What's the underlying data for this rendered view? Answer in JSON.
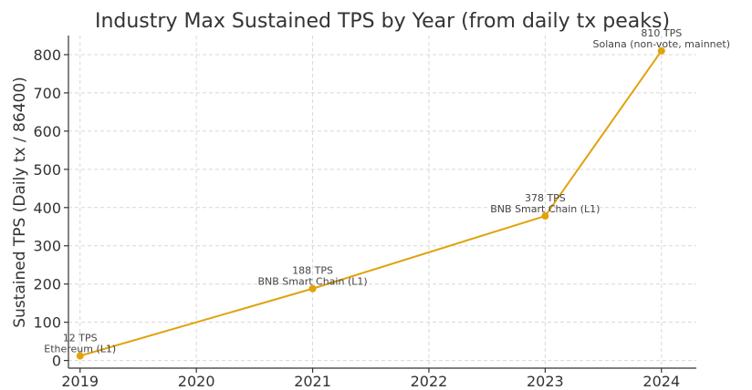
{
  "chart_data": {
    "type": "line",
    "title": "Industry Max Sustained TPS by Year (from daily tx peaks)",
    "xlabel": "",
    "ylabel": "Sustained TPS (Daily tx / 86400)",
    "xlim": [
      2018.9,
      2024.3
    ],
    "ylim": [
      -20,
      850
    ],
    "x_ticks": [
      2019,
      2020,
      2021,
      2022,
      2023,
      2024
    ],
    "y_ticks": [
      0,
      100,
      200,
      300,
      400,
      500,
      600,
      700,
      800
    ],
    "grid": true,
    "line_color": "#E1A20B",
    "series": [
      {
        "name": "Max sustained TPS",
        "points": [
          {
            "x": 2019,
            "y": 12,
            "label_tps": "12 TPS",
            "label_chain": "Ethereum (L1)"
          },
          {
            "x": 2021,
            "y": 188,
            "label_tps": "188 TPS",
            "label_chain": "BNB Smart Chain (L1)"
          },
          {
            "x": 2023,
            "y": 378,
            "label_tps": "378 TPS",
            "label_chain": "BNB Smart Chain (L1)"
          },
          {
            "x": 2024,
            "y": 810,
            "label_tps": "810 TPS",
            "label_chain": "Solana (non-vote, mainnet)"
          }
        ]
      }
    ]
  }
}
